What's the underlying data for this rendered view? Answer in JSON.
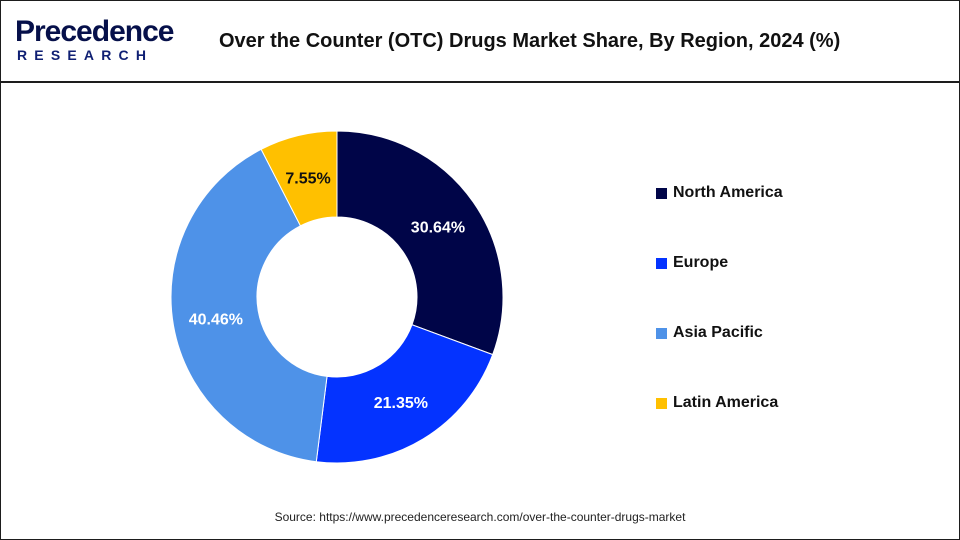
{
  "header": {
    "logo_main": "Precedence",
    "logo_sub": "RESEARCH",
    "title": "Over the Counter (OTC) Drugs Market Share, By Region, 2024 (%)"
  },
  "chart_data": {
    "type": "pie",
    "style": "donut",
    "title": "Over the Counter (OTC) Drugs Market Share, By Region, 2024 (%)",
    "legend_position": "right",
    "slices": [
      {
        "name": "North America",
        "value": 30.64,
        "label": "30.64%",
        "color": "#000548"
      },
      {
        "name": "Europe",
        "value": 21.35,
        "label": "21.35%",
        "color": "#0433ff"
      },
      {
        "name": "Asia Pacific",
        "value": 40.46,
        "label": "40.46%",
        "color": "#4e92e8"
      },
      {
        "name": "Latin America",
        "value": 7.55,
        "label": "7.55%",
        "color": "#ffc000"
      }
    ]
  },
  "footer": {
    "source": "Source: https://www.precedenceresearch.com/over-the-counter-drugs-market"
  }
}
